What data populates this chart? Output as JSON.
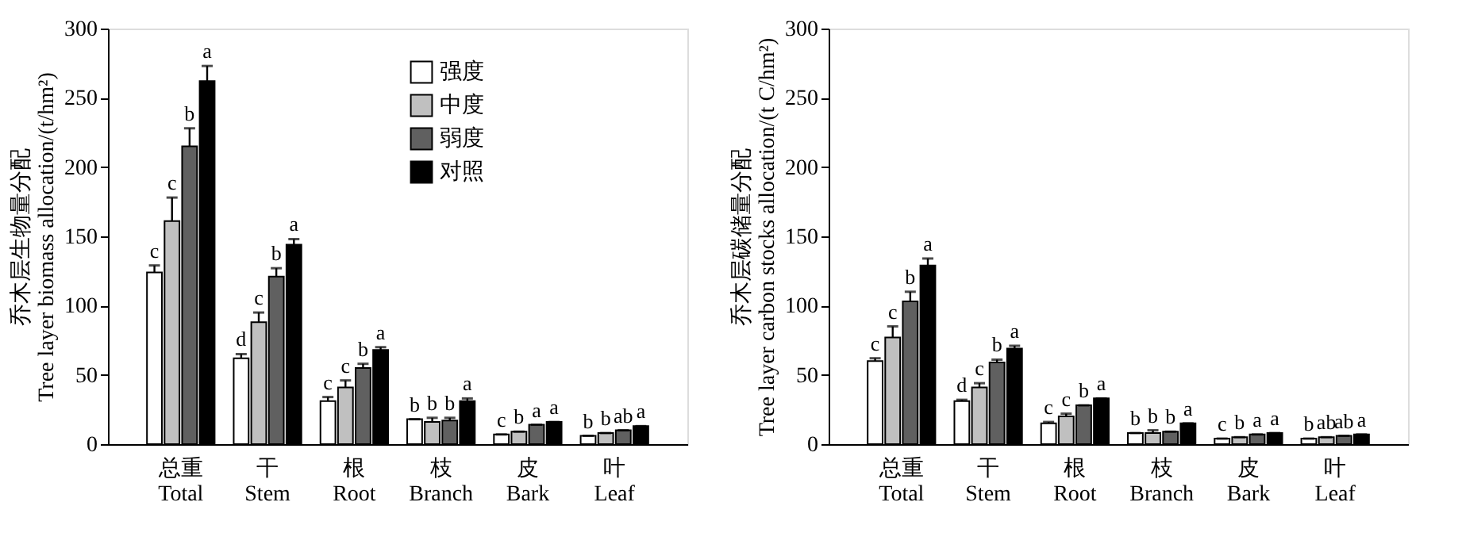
{
  "chart_data": [
    {
      "type": "bar",
      "ylabel": "乔木层生物量分配\nTree layer biomass allocation/(t/hm²)",
      "categories": [
        "总重\nTotal",
        "干\nStem",
        "根\nRoot",
        "枝\nBranch",
        "皮\nBark",
        "叶\nLeaf"
      ],
      "ylim": [
        0,
        300
      ],
      "yticks": [
        0,
        50,
        100,
        150,
        200,
        250,
        300
      ],
      "grid": false,
      "legend": "top",
      "series": [
        {
          "name": "强度",
          "color": "#ffffff",
          "values": [
            124,
            62,
            31,
            18,
            7,
            6
          ],
          "errors": [
            [
              124,
              129
            ],
            [
              62,
              65
            ],
            [
              31,
              34
            ],
            [
              18,
              18
            ],
            [
              7,
              7
            ],
            [
              6,
              6
            ]
          ],
          "value_labels": [
            "c",
            "d",
            "c",
            "b",
            "c",
            "b"
          ]
        },
        {
          "name": "中度",
          "color": "#c0c0c0",
          "values": [
            161,
            88,
            41,
            16,
            9,
            8
          ],
          "errors": [
            [
              161,
              178
            ],
            [
              88,
              95
            ],
            [
              41,
              46
            ],
            [
              16,
              19
            ],
            [
              9,
              9
            ],
            [
              8,
              8
            ]
          ],
          "value_labels": [
            "c",
            "c",
            "c",
            "b",
            "b",
            "b"
          ]
        },
        {
          "name": "弱度",
          "color": "#606060",
          "values": [
            215,
            121,
            55,
            17,
            14,
            10
          ],
          "errors": [
            [
              215,
              228
            ],
            [
              121,
              127
            ],
            [
              55,
              58
            ],
            [
              17,
              19
            ],
            [
              14,
              14
            ],
            [
              10,
              10
            ]
          ],
          "value_labels": [
            "b",
            "b",
            "b",
            "b",
            "a",
            "ab"
          ]
        },
        {
          "name": "对照",
          "color": "#000000",
          "values": [
            262,
            144,
            68,
            31,
            16,
            13
          ],
          "errors": [
            [
              262,
              273
            ],
            [
              144,
              148
            ],
            [
              68,
              70
            ],
            [
              31,
              33
            ],
            [
              16,
              16
            ],
            [
              13,
              13
            ]
          ],
          "value_labels": [
            "a",
            "a",
            "a",
            "a",
            "a",
            "a"
          ]
        }
      ]
    },
    {
      "type": "bar",
      "ylabel": "乔木层碳储量分配\nTree layer carbon stocks allocation/(t C/hm²)",
      "categories": [
        "总重\nTotal",
        "干\nStem",
        "根\nRoot",
        "枝\nBranch",
        "皮\nBark",
        "叶\nLeaf"
      ],
      "ylim": [
        0,
        300
      ],
      "yticks": [
        0,
        50,
        100,
        150,
        200,
        250,
        300
      ],
      "grid": false,
      "series": [
        {
          "color": "#ffffff",
          "values": [
            60,
            31,
            15,
            8,
            4,
            4
          ],
          "errors": [
            [
              60,
              62
            ],
            [
              31,
              32
            ],
            [
              15,
              16
            ],
            [
              8,
              8
            ],
            [
              4,
              4
            ],
            [
              4,
              4
            ]
          ],
          "value_labels": [
            "c",
            "d",
            "c",
            "b",
            "c",
            "b"
          ]
        },
        {
          "color": "#c0c0c0",
          "values": [
            77,
            41,
            20,
            8,
            5,
            5
          ],
          "errors": [
            [
              77,
              85
            ],
            [
              41,
              44
            ],
            [
              20,
              22
            ],
            [
              8,
              10
            ],
            [
              5,
              5
            ],
            [
              5,
              5
            ]
          ],
          "value_labels": [
            "c",
            "c",
            "c",
            "b",
            "b",
            "ab"
          ]
        },
        {
          "color": "#606060",
          "values": [
            103,
            59,
            28,
            9,
            7,
            6
          ],
          "errors": [
            [
              103,
              110
            ],
            [
              59,
              61
            ],
            [
              28,
              28
            ],
            [
              9,
              9
            ],
            [
              7,
              7
            ],
            [
              6,
              6
            ]
          ],
          "value_labels": [
            "b",
            "b",
            "b",
            "b",
            "a",
            "ab"
          ]
        },
        {
          "color": "#000000",
          "values": [
            129,
            69,
            33,
            15,
            8,
            7
          ],
          "errors": [
            [
              129,
              134
            ],
            [
              69,
              71
            ],
            [
              33,
              33
            ],
            [
              15,
              15
            ],
            [
              8,
              8
            ],
            [
              7,
              7
            ]
          ],
          "value_labels": [
            "a",
            "a",
            "a",
            "a",
            "a",
            "a"
          ]
        }
      ]
    }
  ]
}
